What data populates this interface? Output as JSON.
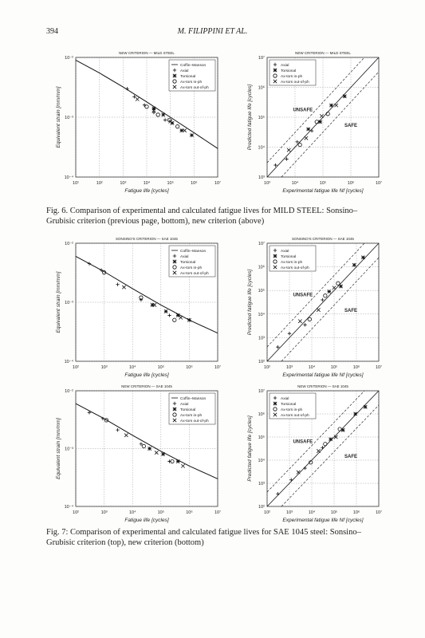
{
  "header": {
    "page_number": "394",
    "running_title": "M. FILIPPINI ET AL."
  },
  "figures": [
    {
      "caption": "Fig. 6. Comparison of experimental and calculated fatigue lives for MILD STEEL: Sonsino–Grubisic criterion (previous page, bottom), new criterion (above)",
      "panels": [
        {
          "type": "scatter",
          "title": "NEW CRITERION — MILD STEEL",
          "xlabel": "Fatigue life [cycles]",
          "ylabel": "Equivalent strain [mm/mm]",
          "log_scale": true,
          "grid": true,
          "legend": "upper right",
          "xlim": [
            10,
            10000000
          ],
          "xticks": [
            {
              "value": 10,
              "label": "10¹"
            },
            {
              "value": 100,
              "label": "10²"
            },
            {
              "value": 1000,
              "label": "10³"
            },
            {
              "value": 10000,
              "label": "10⁴"
            },
            {
              "value": 100000,
              "label": "10⁵"
            },
            {
              "value": 1000000,
              "label": "10⁶"
            },
            {
              "value": 10000000,
              "label": "10⁷"
            }
          ],
          "ylim": [
            0.0001,
            0.01
          ],
          "yticks": [
            {
              "value": 0.0001,
              "label": "10⁻⁴"
            },
            {
              "value": 0.001,
              "label": "10⁻³"
            },
            {
              "value": 0.01,
              "label": "10⁻²"
            }
          ],
          "series": [
            {
              "name": "Coffin–Manson",
              "marker": "line",
              "x": [
                10,
                100,
                1000,
                10000,
                100000,
                1000000,
                10000000
              ],
              "values": [
                0.009,
                0.0055,
                0.0032,
                0.0018,
                0.001,
                0.00055,
                0.0003
              ]
            },
            {
              "name": "Axial",
              "marker": "plus",
              "x": [
                1500,
                3000,
                8000,
                20000,
                60000
              ],
              "values": [
                0.003,
                0.0022,
                0.0016,
                0.0012,
                0.0009
              ]
            },
            {
              "name": "Torsional",
              "marker": "star",
              "x": [
                20000,
                50000,
                120000,
                300000,
                800000
              ],
              "values": [
                0.0014,
                0.0011,
                0.0008,
                0.0006,
                0.0005
              ]
            },
            {
              "name": "Ax-tors in-ph",
              "marker": "circle",
              "x": [
                10000,
                30000,
                90000,
                200000
              ],
              "values": [
                0.0015,
                0.0011,
                0.0009,
                0.0007
              ]
            },
            {
              "name": "Ax-tors out-of-ph",
              "marker": "cross",
              "x": [
                4000,
                20000,
                100000,
                400000
              ],
              "values": [
                0.002,
                0.0013,
                0.00085,
                0.0006
              ]
            }
          ]
        },
        {
          "type": "scatter",
          "title": "NEW CRITERION — MILD STEEL",
          "xlabel": "Experimental fatigue life Nf [cycles]",
          "ylabel": "Predicted fatigue life [cycles]",
          "log_scale": true,
          "grid": true,
          "legend": "upper left",
          "annotations": [
            {
              "text": "UNSAFE"
            },
            {
              "text": "SAFE"
            }
          ],
          "xlim": [
            1000,
            10000000
          ],
          "xticks": [
            {
              "value": 1000,
              "label": "10³"
            },
            {
              "value": 10000,
              "label": "10⁴"
            },
            {
              "value": 100000,
              "label": "10⁵"
            },
            {
              "value": 1000000,
              "label": "10⁶"
            },
            {
              "value": 10000000,
              "label": "10⁷"
            }
          ],
          "ylim": [
            1000,
            10000000
          ],
          "yticks": [
            {
              "value": 1000,
              "label": "10³"
            },
            {
              "value": 10000,
              "label": "10⁴"
            },
            {
              "value": 100000,
              "label": "10⁵"
            },
            {
              "value": 1000000,
              "label": "10⁶"
            },
            {
              "value": 10000000,
              "label": "10⁷"
            }
          ],
          "series": [
            {
              "name": "Axial",
              "marker": "plus",
              "x": [
                2000,
                5000,
                12000,
                40000
              ],
              "values": [
                2500,
                4000,
                15000,
                35000
              ]
            },
            {
              "name": "Torsional",
              "marker": "star",
              "x": [
                30000,
                80000,
                200000,
                600000
              ],
              "values": [
                40000,
                70000,
                250000,
                500000
              ]
            },
            {
              "name": "Ax-tors in-ph",
              "marker": "circle",
              "x": [
                15000,
                60000,
                150000
              ],
              "values": [
                12000,
                70000,
                130000
              ]
            },
            {
              "name": "Ax-tors out-of-ph",
              "marker": "cross",
              "x": [
                6000,
                25000,
                90000,
                300000
              ],
              "values": [
                8000,
                20000,
                110000,
                250000
              ]
            }
          ]
        }
      ]
    },
    {
      "caption": "Fig. 7: Comparison of experimental and calculated fatigue lives for SAE 1045 steel: Sonsino–Grubisic criterion (top), new criterion (bottom)",
      "panels": [
        {
          "type": "scatter",
          "title": "SONSINO'S CRITERION — SAE 1045",
          "xlabel": "Fatigue life [cycles]",
          "ylabel": "Equivalent strain [mm/mm]",
          "log_scale": true,
          "grid": true,
          "legend": "upper right",
          "xlim": [
            100,
            10000000
          ],
          "xticks": [
            {
              "value": 100,
              "label": "10²"
            },
            {
              "value": 1000,
              "label": "10³"
            },
            {
              "value": 10000,
              "label": "10⁴"
            },
            {
              "value": 100000,
              "label": "10⁵"
            },
            {
              "value": 1000000,
              "label": "10⁶"
            },
            {
              "value": 10000000,
              "label": "10⁷"
            }
          ],
          "ylim": [
            0.0001,
            0.01
          ],
          "yticks": [
            {
              "value": 0.0001,
              "label": "10⁻⁴"
            },
            {
              "value": 0.001,
              "label": "10⁻³"
            },
            {
              "value": 0.01,
              "label": "10⁻²"
            }
          ],
          "series": [
            {
              "name": "Coffin–Manson",
              "marker": "line",
              "x": [
                100,
                1000,
                10000,
                100000,
                1000000,
                10000000
              ],
              "values": [
                0.006,
                0.0033,
                0.0017,
                0.0009,
                0.0005,
                0.0003
              ]
            },
            {
              "name": "Axial",
              "marker": "plus",
              "x": [
                300,
                800,
                3000,
                20000,
                200000
              ],
              "values": [
                0.0045,
                0.0035,
                0.002,
                0.0011,
                0.0006
              ]
            },
            {
              "name": "Torsional",
              "marker": "star",
              "x": [
                50000,
                150000,
                400000,
                1000000
              ],
              "values": [
                0.0009,
                0.0007,
                0.0006,
                0.0005
              ]
            },
            {
              "name": "Ax-tors in-ph",
              "marker": "circle",
              "x": [
                1000,
                20000,
                300000
              ],
              "values": [
                0.0032,
                0.0012,
                0.0005
              ]
            },
            {
              "name": "Ax-tors out-of-ph",
              "marker": "cross",
              "x": [
                5000,
                60000,
                500000
              ],
              "values": [
                0.0018,
                0.0009,
                0.00055
              ]
            }
          ]
        },
        {
          "type": "scatter",
          "title": "SONSINO'S CRITERION — SAE 1045",
          "xlabel": "Experimental fatigue life Nf [cycles]",
          "ylabel": "Predicted fatigue life [cycles]",
          "log_scale": true,
          "grid": true,
          "legend": "upper left",
          "annotations": [
            {
              "text": "UNSAFE"
            },
            {
              "text": "SAFE"
            }
          ],
          "xlim": [
            100,
            10000000
          ],
          "xticks": [
            {
              "value": 100,
              "label": "10²"
            },
            {
              "value": 1000,
              "label": "10³"
            },
            {
              "value": 10000,
              "label": "10⁴"
            },
            {
              "value": 100000,
              "label": "10⁵"
            },
            {
              "value": 1000000,
              "label": "10⁶"
            },
            {
              "value": 10000000,
              "label": "10⁷"
            }
          ],
          "ylim": [
            100,
            10000000
          ],
          "yticks": [
            {
              "value": 100,
              "label": "10²"
            },
            {
              "value": 1000,
              "label": "10³"
            },
            {
              "value": 10000,
              "label": "10⁴"
            },
            {
              "value": 100000,
              "label": "10⁵"
            },
            {
              "value": 1000000,
              "label": "10⁶"
            },
            {
              "value": 10000000,
              "label": "10⁷"
            }
          ],
          "series": [
            {
              "name": "Axial",
              "marker": "plus",
              "x": [
                300,
                1000,
                5000,
                30000
              ],
              "values": [
                400,
                1500,
                3500,
                40000
              ]
            },
            {
              "name": "Torsional",
              "marker": "star",
              "x": [
                60000,
                200000,
                800000,
                2000000
              ],
              "values": [
                90000,
                150000,
                1200000,
                2500000
              ]
            },
            {
              "name": "Ax-tors in-ph",
              "marker": "circle",
              "x": [
                8000,
                40000,
                150000
              ],
              "values": [
                6000,
                60000,
                200000
              ]
            },
            {
              "name": "Ax-tors out-of-ph",
              "marker": "cross",
              "x": [
                3000,
                20000,
                100000
              ],
              "values": [
                5000,
                15000,
                130000
              ]
            }
          ]
        },
        {
          "type": "scatter",
          "title": "NEW CRITERION — SAE 1045",
          "xlabel": "Fatigue life [cycles]",
          "ylabel": "Equivalent strain [mm/mm]",
          "log_scale": true,
          "grid": true,
          "legend": "upper right",
          "xlim": [
            100,
            10000000
          ],
          "xticks": [
            {
              "value": 100,
              "label": "10²"
            },
            {
              "value": 1000,
              "label": "10³"
            },
            {
              "value": 10000,
              "label": "10⁴"
            },
            {
              "value": 100000,
              "label": "10⁵"
            },
            {
              "value": 1000000,
              "label": "10⁶"
            },
            {
              "value": 10000000,
              "label": "10⁷"
            }
          ],
          "ylim": [
            0.0001,
            0.01
          ],
          "yticks": [
            {
              "value": 0.0001,
              "label": "10⁻⁴"
            },
            {
              "value": 0.001,
              "label": "10⁻³"
            },
            {
              "value": 0.01,
              "label": "10⁻²"
            }
          ],
          "series": [
            {
              "name": "Coffin–Manson",
              "marker": "line",
              "x": [
                100,
                1000,
                10000,
                100000,
                1000000,
                10000000
              ],
              "values": [
                0.006,
                0.0033,
                0.0017,
                0.0009,
                0.0005,
                0.0003
              ]
            },
            {
              "name": "Axial",
              "marker": "plus",
              "x": [
                300,
                900,
                3000,
                20000,
                200000
              ],
              "values": [
                0.0042,
                0.0033,
                0.0021,
                0.0012,
                0.0006
              ]
            },
            {
              "name": "Torsional",
              "marker": "star",
              "x": [
                40000,
                120000,
                400000
              ],
              "values": [
                0.001,
                0.0008,
                0.0006
              ]
            },
            {
              "name": "Ax-tors in-ph",
              "marker": "circle",
              "x": [
                1200,
                25000,
                250000
              ],
              "values": [
                0.0031,
                0.0011,
                0.0006
              ]
            },
            {
              "name": "Ax-tors out-of-ph",
              "marker": "cross",
              "x": [
                6000,
                70000,
                600000
              ],
              "values": [
                0.0017,
                0.00085,
                0.0005
              ]
            }
          ]
        },
        {
          "type": "scatter",
          "title": "NEW CRITERION — SAE 1045",
          "xlabel": "Experimental fatigue life Nf [cycles]",
          "ylabel": "Predicted fatigue life [cycles]",
          "log_scale": true,
          "grid": true,
          "legend": "upper left",
          "annotations": [
            {
              "text": "UNSAFE"
            },
            {
              "text": "SAFE"
            }
          ],
          "xlim": [
            100,
            10000000
          ],
          "xticks": [
            {
              "value": 100,
              "label": "10²"
            },
            {
              "value": 1000,
              "label": "10³"
            },
            {
              "value": 10000,
              "label": "10⁴"
            },
            {
              "value": 100000,
              "label": "10⁵"
            },
            {
              "value": 1000000,
              "label": "10⁶"
            },
            {
              "value": 10000000,
              "label": "10⁷"
            }
          ],
          "ylim": [
            100,
            10000000
          ],
          "yticks": [
            {
              "value": 100,
              "label": "10²"
            },
            {
              "value": 1000,
              "label": "10³"
            },
            {
              "value": 10000,
              "label": "10⁴"
            },
            {
              "value": 100000,
              "label": "10⁵"
            },
            {
              "value": 1000000,
              "label": "10⁶"
            },
            {
              "value": 10000000,
              "label": "10⁷"
            }
          ],
          "series": [
            {
              "name": "Axial",
              "marker": "plus",
              "x": [
                300,
                1200,
                5000,
                30000
              ],
              "values": [
                350,
                1400,
                4500,
                35000
              ]
            },
            {
              "name": "Torsional",
              "marker": "star",
              "x": [
                70000,
                250000,
                900000,
                2500000
              ],
              "values": [
                80000,
                200000,
                1000000,
                2000000
              ]
            },
            {
              "name": "Ax-tors in-ph",
              "marker": "circle",
              "x": [
                9000,
                40000,
                180000
              ],
              "values": [
                8000,
                50000,
                220000
              ]
            },
            {
              "name": "Ax-tors out-of-ph",
              "marker": "cross",
              "x": [
                2500,
                20000,
                120000
              ],
              "values": [
                3000,
                25000,
                100000
              ]
            }
          ]
        }
      ]
    }
  ]
}
